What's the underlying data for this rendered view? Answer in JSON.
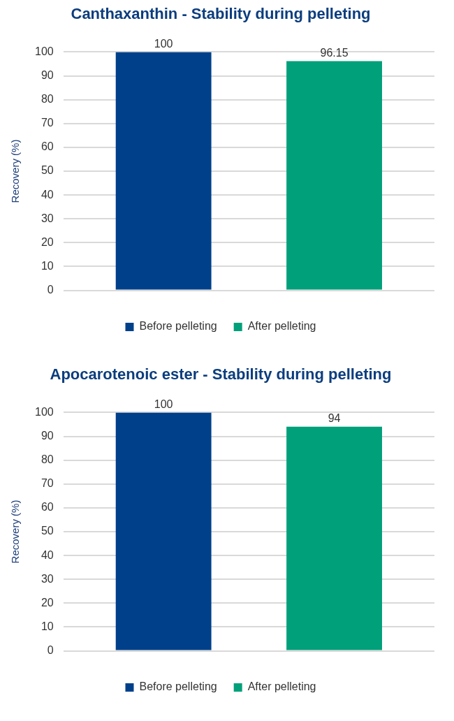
{
  "chart_data": [
    {
      "type": "bar",
      "title": "Canthaxanthin - Stability during pelleting",
      "ylabel": "Recovery (%)",
      "categories": [
        null
      ],
      "series": [
        {
          "name": "Before pelleting",
          "color": "#00408a",
          "values": [
            100
          ]
        },
        {
          "name": "After pelleting",
          "color": "#00a07a",
          "values": [
            96.15
          ]
        }
      ],
      "ylim": [
        0,
        100
      ],
      "yticks": [
        0,
        10,
        20,
        30,
        40,
        50,
        60,
        70,
        80,
        90,
        100
      ],
      "grid": "y",
      "legend": "bottom",
      "data_labels": true
    },
    {
      "type": "bar",
      "title": "Apocarotenoic ester - Stability during pelleting",
      "ylabel": "Recovery (%)",
      "categories": [
        null
      ],
      "series": [
        {
          "name": "Before pelleting",
          "color": "#00408a",
          "values": [
            100
          ]
        },
        {
          "name": "After pelleting",
          "color": "#00a07a",
          "values": [
            94
          ]
        }
      ],
      "ylim": [
        0,
        100
      ],
      "yticks": [
        0,
        10,
        20,
        30,
        40,
        50,
        60,
        70,
        80,
        90,
        100
      ],
      "grid": "y",
      "legend": "bottom",
      "data_labels": true
    }
  ]
}
